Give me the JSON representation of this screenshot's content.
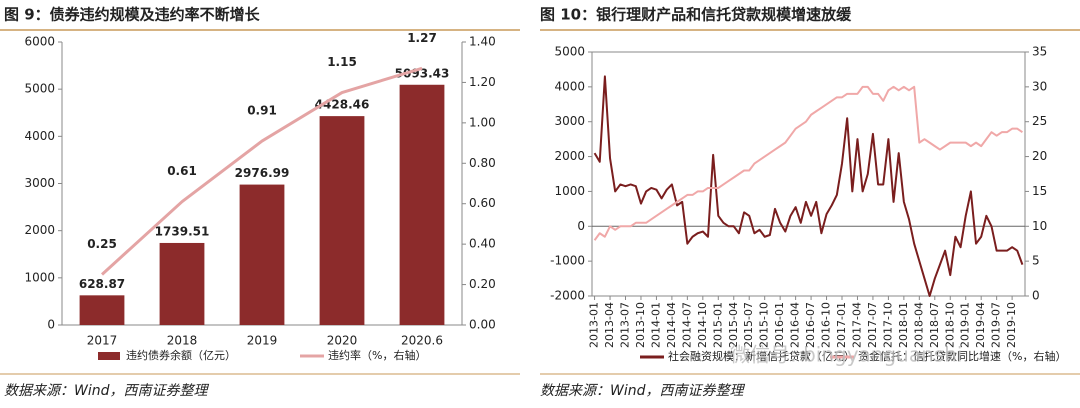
{
  "chart_data": [
    {
      "type": "bar",
      "title": "图 9：债券违约规模及违约率不断增长",
      "source": "数据来源：Wind，西南证券整理",
      "categories": [
        "2017",
        "2018",
        "2019",
        "2020",
        "2020.6"
      ],
      "series": [
        {
          "name": "违约债券余额（亿元）",
          "color": "#8c2b2b",
          "type": "bar",
          "values": [
            628.87,
            1739.51,
            2976.99,
            4428.46,
            5093.43
          ]
        },
        {
          "name": "违约率（%，右轴）",
          "color": "#e4a4a4",
          "type": "line",
          "axis": "y2",
          "values": [
            0.25,
            0.61,
            0.91,
            1.15,
            1.27
          ]
        }
      ],
      "data_labels": true,
      "ylim": [
        0,
        6000
      ],
      "yticks": [
        0,
        1000,
        2000,
        3000,
        4000,
        5000,
        6000
      ],
      "y2lim": [
        0,
        1.4
      ],
      "y2ticks": [
        {
          "value": 0,
          "label": "0.00"
        },
        {
          "value": 0.2,
          "label": "0.20"
        },
        {
          "value": 0.4,
          "label": "0.40"
        },
        {
          "value": 0.6,
          "label": "0.60"
        },
        {
          "value": 0.8,
          "label": "0.80"
        },
        {
          "value": 1.0,
          "label": "1.00"
        },
        {
          "value": 1.2,
          "label": "1.20"
        },
        {
          "value": 1.4,
          "label": "1.40"
        }
      ]
    },
    {
      "type": "line",
      "title": "图 10：银行理财产品和信托贷款规模增速放缓",
      "source": "数据来源：Wind，西南证券整理",
      "categories": [
        "2013-01",
        null,
        null,
        "2013-04",
        null,
        null,
        "2013-07",
        null,
        null,
        "2013-10",
        null,
        null,
        "2014-01",
        null,
        null,
        "2014-04",
        null,
        null,
        "2014-07",
        null,
        null,
        "2014-10",
        null,
        null,
        "2015-01",
        null,
        null,
        "2015-04",
        null,
        null,
        "2015-07",
        null,
        null,
        "2015-10",
        null,
        null,
        "2016-01",
        null,
        null,
        "2016-04",
        null,
        null,
        "2016-07",
        null,
        null,
        "2016-10",
        null,
        null,
        "2017-01",
        null,
        null,
        "2017-04",
        null,
        null,
        "2017-07",
        null,
        null,
        "2017-10",
        null,
        null,
        "2018-01",
        null,
        null,
        "2018-04",
        null,
        null,
        "2018-07",
        null,
        null,
        "2018-10",
        null,
        null,
        "2019-01",
        null,
        null,
        "2019-04",
        null,
        null,
        "2019-07",
        null,
        null,
        "2019-10",
        null,
        null
      ],
      "series": [
        {
          "name": "社会融资规模：新增信托贷款（亿元）",
          "color": "#7a1e1e",
          "values": [
            2100,
            1850,
            4300,
            1950,
            1000,
            1200,
            1150,
            1200,
            1150,
            650,
            1000,
            1100,
            1050,
            800,
            1050,
            1200,
            600,
            700,
            -500,
            -300,
            -200,
            -150,
            -300,
            2050,
            300,
            100,
            0,
            0,
            -200,
            400,
            300,
            -200,
            -100,
            -300,
            -250,
            500,
            100,
            -150,
            300,
            550,
            100,
            700,
            300,
            700,
            -200,
            350,
            600,
            900,
            1800,
            3100,
            1000,
            2500,
            1000,
            1500,
            2650,
            1200,
            1200,
            2500,
            700,
            2100,
            700,
            200,
            -500,
            -1000,
            -1500,
            -2000,
            -1500,
            -1100,
            -700,
            -1400,
            -300,
            -600,
            300,
            1000,
            -500,
            -300,
            300,
            0,
            -700,
            -700,
            -700,
            -600,
            -700,
            -1100
          ]
        },
        {
          "name": "资金信托：信托贷款同比增速（%，右轴）",
          "color": "#f0a8a8",
          "axis": "y2",
          "values": [
            8,
            9,
            8.5,
            10,
            9.5,
            10,
            10,
            10,
            10.5,
            10.5,
            10.5,
            11,
            11.5,
            12,
            12.5,
            13,
            13.5,
            14,
            14.5,
            14.5,
            15,
            15,
            15.5,
            15.5,
            15.5,
            16,
            16.5,
            17,
            17.5,
            18,
            18,
            19,
            19.5,
            20,
            20.5,
            21,
            21.5,
            22,
            23,
            24,
            24.5,
            25,
            26,
            26.5,
            27,
            27.5,
            28,
            28.5,
            28.5,
            29,
            29,
            29,
            30,
            30,
            29,
            29,
            28,
            29.5,
            30,
            29.5,
            30,
            29.5,
            30,
            22,
            22.5,
            22,
            21.5,
            21,
            21.5,
            22,
            22,
            22,
            22,
            21.5,
            22,
            21.5,
            22.5,
            23.5,
            23,
            23.5,
            23.5,
            24,
            24,
            23.5
          ]
        }
      ],
      "ylim": [
        -2000,
        5000
      ],
      "yticks": [
        -2000,
        -1000,
        0,
        1000,
        2000,
        3000,
        4000,
        5000
      ],
      "y2lim": [
        0,
        35
      ],
      "y2ticks": [
        0,
        5,
        10,
        15,
        20,
        25,
        30,
        35
      ]
    }
  ],
  "watermark": "微信号: bingyanguanshi"
}
